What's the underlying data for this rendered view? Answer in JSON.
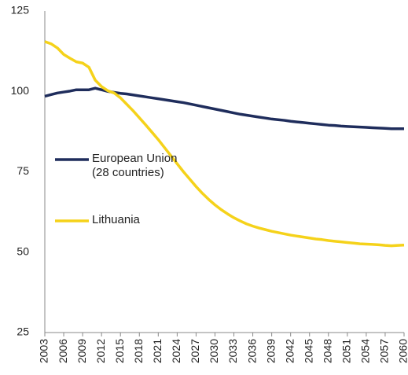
{
  "chart_data": {
    "type": "line",
    "x": [
      2003,
      2004,
      2005,
      2006,
      2007,
      2008,
      2009,
      2010,
      2011,
      2012,
      2013,
      2014,
      2015,
      2016,
      2017,
      2018,
      2019,
      2020,
      2021,
      2022,
      2023,
      2024,
      2025,
      2026,
      2027,
      2028,
      2029,
      2030,
      2031,
      2032,
      2033,
      2034,
      2035,
      2036,
      2037,
      2038,
      2039,
      2040,
      2041,
      2042,
      2043,
      2044,
      2045,
      2046,
      2047,
      2048,
      2049,
      2050,
      2051,
      2052,
      2053,
      2054,
      2055,
      2056,
      2057,
      2058,
      2059,
      2060
    ],
    "series": [
      {
        "name": "European Union (28 countries)",
        "color": "#1f2d5c",
        "values": [
          98.5,
          99,
          99.5,
          99.8,
          100.1,
          100.5,
          100.5,
          100.5,
          101,
          100.5,
          100,
          99.7,
          99.4,
          99.2,
          98.9,
          98.6,
          98.3,
          98,
          97.7,
          97.4,
          97.1,
          96.8,
          96.5,
          96.1,
          95.7,
          95.3,
          94.9,
          94.5,
          94.1,
          93.7,
          93.3,
          92.9,
          92.6,
          92.3,
          92,
          91.7,
          91.4,
          91.2,
          91,
          90.7,
          90.5,
          90.3,
          90.1,
          89.9,
          89.7,
          89.5,
          89.4,
          89.2,
          89.1,
          89,
          88.9,
          88.8,
          88.7,
          88.6,
          88.5,
          88.4,
          88.4,
          88.4
        ]
      },
      {
        "name": "Lithuania",
        "color": "#f5d21a",
        "values": [
          115.5,
          114.8,
          113.5,
          111.5,
          110.3,
          109.2,
          108.8,
          107.5,
          103.5,
          101.5,
          100.2,
          99.5,
          98,
          96,
          94,
          91.8,
          89.6,
          87.3,
          85,
          82.5,
          80,
          77.5,
          75,
          72.7,
          70.4,
          68.3,
          66.4,
          64.7,
          63.2,
          61.9,
          60.7,
          59.7,
          58.8,
          58.1,
          57.5,
          57,
          56.5,
          56.1,
          55.7,
          55.3,
          55,
          54.7,
          54.4,
          54.1,
          53.9,
          53.6,
          53.4,
          53.2,
          53,
          52.8,
          52.6,
          52.5,
          52.4,
          52.3,
          52.1,
          52,
          52.1,
          52.2
        ]
      }
    ],
    "xlim": [
      2003,
      2060
    ],
    "xticks": [
      2003,
      2006,
      2009,
      2012,
      2015,
      2018,
      2021,
      2024,
      2027,
      2030,
      2033,
      2036,
      2039,
      2042,
      2045,
      2048,
      2051,
      2054,
      2057,
      2060
    ],
    "ylim": [
      25,
      125
    ],
    "yticks": [
      25,
      50,
      75,
      100,
      125
    ]
  }
}
